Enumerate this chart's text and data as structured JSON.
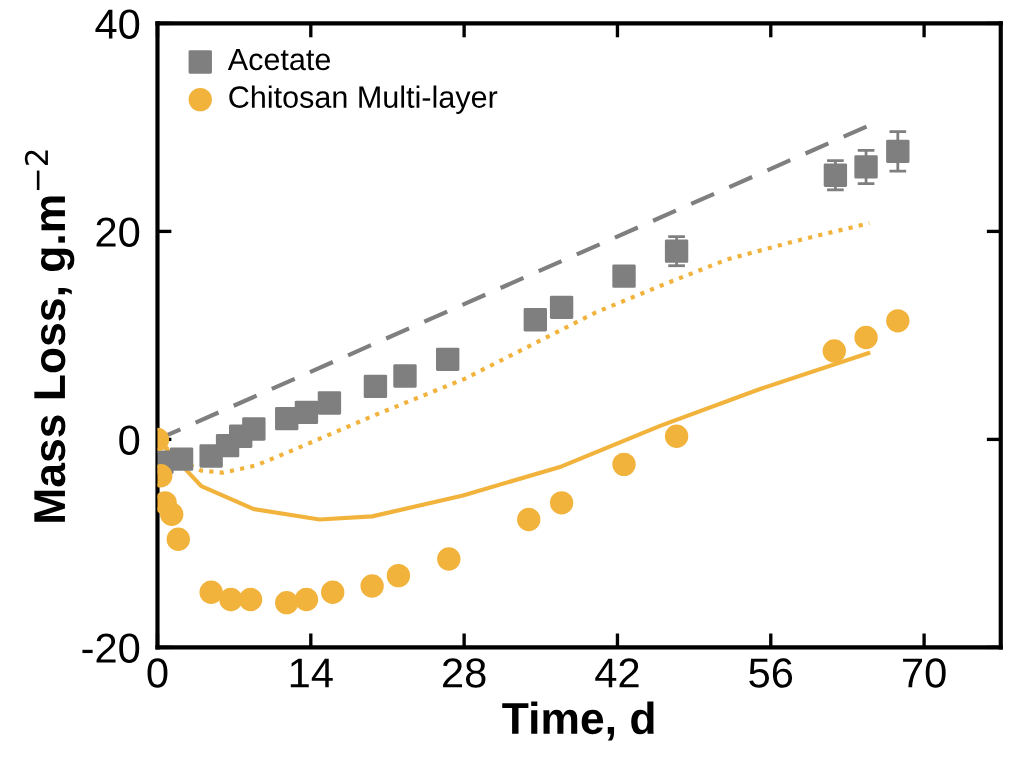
{
  "chart_data": {
    "type": "scatter",
    "xlabel": "Time, d",
    "ylabel": "Mass Loss, g.m$^{−2}$",
    "xlim": [
      0,
      77
    ],
    "ylim": [
      -20,
      40
    ],
    "xticks": [
      0,
      14,
      28,
      42,
      56,
      70
    ],
    "yticks": [
      -20,
      0,
      20,
      40
    ],
    "grid": false,
    "legend": "top left",
    "series": [
      {
        "name": "Acetate",
        "marker": "square",
        "color": "#7f7f7f",
        "x": [
          0.4,
          2.2,
          4.9,
          6.4,
          7.6,
          8.8,
          11.8,
          13.6,
          15.7,
          19.9,
          22.6,
          26.5,
          34.5,
          36.9,
          42.6,
          47.4,
          61.9,
          64.7,
          67.6
        ],
        "values": [
          -2.2,
          -1.9,
          -1.6,
          -0.6,
          0.3,
          1.0,
          2.0,
          2.6,
          3.5,
          5.1,
          6.1,
          7.7,
          11.5,
          12.7,
          15.7,
          18.1,
          25.4,
          26.2,
          27.7
        ],
        "errors": [
          0.5,
          0.5,
          0.5,
          0.5,
          0.5,
          0.5,
          0.5,
          0.5,
          0.5,
          0.5,
          0.5,
          0.6,
          0.6,
          0.8,
          0.8,
          1.4,
          1.4,
          1.6,
          1.9
        ]
      },
      {
        "name": "Chitosan Multi-layer",
        "marker": "circle",
        "color": "#f2b33d",
        "x": [
          0,
          0.3,
          0.7,
          1.3,
          1.9,
          4.9,
          6.7,
          8.5,
          11.8,
          13.6,
          16.0,
          19.6,
          22.0,
          26.6,
          33.9,
          36.9,
          42.6,
          47.4,
          61.8,
          64.7,
          67.6
        ],
        "values": [
          0,
          -3.5,
          -6.1,
          -7.2,
          -9.6,
          -14.7,
          -15.4,
          -15.4,
          -15.7,
          -15.4,
          -14.7,
          -14.1,
          -13.1,
          -11.5,
          -7.7,
          -6.1,
          -2.4,
          0.3,
          8.5,
          9.8,
          11.4
        ]
      },
      {
        "type": "line",
        "line_style": "dashed",
        "color": "#7f7f7f",
        "x": [
          0,
          65
        ],
        "values": [
          0,
          30.2
        ]
      },
      {
        "type": "line",
        "line_style": "dotted",
        "color": "#f2b33d",
        "x": [
          0,
          2,
          4,
          6,
          9,
          12,
          16,
          20,
          28,
          34,
          40,
          46,
          52,
          58,
          65
        ],
        "values": [
          0,
          -2,
          -3,
          -3.2,
          -2.5,
          -1.2,
          0.6,
          2.4,
          5.8,
          9.0,
          12.2,
          14.8,
          17.3,
          19.0,
          20.8
        ]
      },
      {
        "type": "line",
        "line_style": "solid",
        "color": "#f2b33d",
        "x": [
          0,
          4,
          8.8,
          14.8,
          19.6,
          27.9,
          36.9,
          45.9,
          54.9,
          64.9
        ],
        "values": [
          0,
          -4.5,
          -6.7,
          -7.7,
          -7.4,
          -5.4,
          -2.6,
          1.3,
          4.8,
          8.3
        ]
      }
    ]
  }
}
